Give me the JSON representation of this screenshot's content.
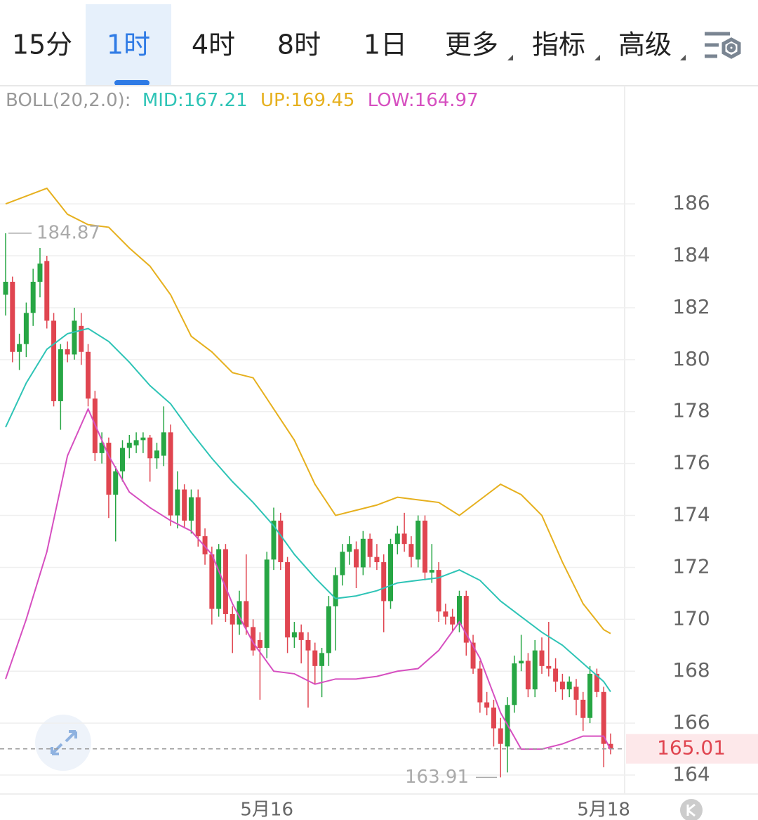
{
  "tabs": [
    "15分",
    "1时",
    "4时",
    "8时",
    "1日",
    "更多",
    "指标",
    "高级"
  ],
  "chart_data": {
    "type": "candlestick",
    "boll_label": "BOLL(20,2.0):",
    "ylim": [
      163.27,
      190.47
    ],
    "yticks": [
      164,
      166,
      168,
      170,
      172,
      174,
      176,
      178,
      180,
      182,
      184,
      186
    ],
    "grid": true,
    "up_color": "#27a644",
    "down_color": "#e04550",
    "high_label": 184.87,
    "low_label": 163.91,
    "last_price": 165.01,
    "categories": [
      null,
      null,
      null,
      null,
      null,
      null,
      null,
      null,
      null,
      null,
      null,
      null,
      null,
      null,
      null,
      null,
      null,
      null,
      null,
      null,
      null,
      null,
      null,
      null,
      null,
      null,
      null,
      null,
      null,
      null,
      null,
      null,
      null,
      null,
      null,
      null,
      null,
      null,
      "5月16",
      null,
      null,
      null,
      null,
      null,
      null,
      null,
      null,
      null,
      null,
      null,
      null,
      null,
      null,
      null,
      null,
      null,
      null,
      null,
      null,
      null,
      null,
      null,
      null,
      null,
      null,
      null,
      null,
      null,
      null,
      null,
      null,
      null,
      null,
      null,
      null,
      null,
      null,
      null,
      null,
      null,
      null,
      null,
      null,
      null,
      null,
      null,
      null,
      "5月18",
      null
    ],
    "ohlc": [
      [
        182.5,
        184.87,
        181.7,
        183
      ],
      [
        183,
        183.2,
        179.9,
        180.3
      ],
      [
        180.3,
        181,
        179.6,
        180.6
      ],
      [
        180.6,
        182.2,
        180.1,
        181.8
      ],
      [
        181.8,
        183.5,
        181.3,
        183
      ],
      [
        183,
        184.3,
        182.4,
        183.7
      ],
      [
        183.8,
        184,
        181.2,
        181.5
      ],
      [
        181.5,
        181.8,
        178.2,
        178.4
      ],
      [
        178.4,
        180.6,
        177.3,
        180.4
      ],
      [
        180.4,
        180.7,
        179.9,
        180.2
      ],
      [
        180.2,
        182,
        180,
        181.5
      ],
      [
        181.3,
        181.8,
        179.8,
        180.3
      ],
      [
        180.3,
        180.6,
        178.2,
        178.5
      ],
      [
        178.5,
        178.8,
        176.1,
        176.4
      ],
      [
        176.4,
        177.2,
        176,
        176.8
      ],
      [
        176.8,
        177,
        173.9,
        174.8
      ],
      [
        174.8,
        175.9,
        173,
        175.7
      ],
      [
        175.7,
        176.9,
        175.3,
        176.6
      ],
      [
        176.6,
        177.1,
        176.2,
        176.8
      ],
      [
        176.7,
        177.2,
        176.4,
        176.9
      ],
      [
        176.9,
        177.2,
        176.4,
        177
      ],
      [
        177,
        177.1,
        175.3,
        176.2
      ],
      [
        176.2,
        176.8,
        175.8,
        176.5
      ],
      [
        176.3,
        178.2,
        175.9,
        177.2
      ],
      [
        177.2,
        177.5,
        173.6,
        174
      ],
      [
        174,
        175.7,
        173.5,
        175
      ],
      [
        175,
        175.2,
        173.5,
        173.8
      ],
      [
        173.8,
        175,
        173.3,
        174.7
      ],
      [
        174.7,
        175,
        172.8,
        173.2
      ],
      [
        173.2,
        173.5,
        172.1,
        172.5
      ],
      [
        172.5,
        172.8,
        169.8,
        170.4
      ],
      [
        170.4,
        172.9,
        170.1,
        172.7
      ],
      [
        172.7,
        172.9,
        169.9,
        170.2
      ],
      [
        170.2,
        170.5,
        168.7,
        169.8
      ],
      [
        169.8,
        171.1,
        169.4,
        170.7
      ],
      [
        170.7,
        172.5,
        169.4,
        169.7
      ],
      [
        169.7,
        170,
        168.6,
        168.8
      ],
      [
        169.2,
        169.5,
        166.9,
        168.9
      ],
      [
        168.9,
        172.6,
        168.5,
        172.3
      ],
      [
        172.3,
        174.3,
        171.9,
        173.8
      ],
      [
        173.8,
        174.1,
        171.9,
        172.2
      ],
      [
        172.2,
        172.4,
        168.7,
        169.3
      ],
      [
        169.3,
        169.9,
        168.9,
        169.5
      ],
      [
        169.5,
        169.8,
        168.3,
        169.2
      ],
      [
        169.2,
        169.5,
        166.6,
        168.8
      ],
      [
        168.8,
        169.1,
        167.5,
        168.2
      ],
      [
        168.2,
        168.9,
        167,
        168.7
      ],
      [
        168.7,
        170.9,
        168.2,
        170.5
      ],
      [
        170.5,
        172,
        168.8,
        171.7
      ],
      [
        171.7,
        172.9,
        171.3,
        172.6
      ],
      [
        172.6,
        173.2,
        172.1,
        172.9
      ],
      [
        172.7,
        173,
        171.2,
        172
      ],
      [
        172,
        173.4,
        171.7,
        173.1
      ],
      [
        173.1,
        173.3,
        172,
        172.4
      ],
      [
        172.4,
        172.9,
        171.9,
        172.2
      ],
      [
        172.2,
        172.5,
        169.5,
        170.7
      ],
      [
        170.7,
        173.1,
        170.4,
        172.9
      ],
      [
        172.9,
        173.6,
        172.5,
        173.3
      ],
      [
        173.3,
        174.1,
        172.6,
        172.9
      ],
      [
        172.9,
        173.2,
        172,
        172.4
      ],
      [
        172.3,
        174,
        172,
        173.8
      ],
      [
        173.8,
        174,
        171.5,
        171.8
      ],
      [
        171.8,
        172.9,
        171.4,
        171.9
      ],
      [
        171.9,
        172.2,
        169.9,
        170.3
      ],
      [
        170.3,
        170.6,
        169.8,
        170.1
      ],
      [
        170.1,
        170.4,
        169.5,
        169.8
      ],
      [
        169.8,
        171.1,
        169.5,
        170.9
      ],
      [
        170.9,
        171.1,
        168.6,
        169.1
      ],
      [
        169.1,
        169.4,
        167.9,
        168.1
      ],
      [
        168.1,
        168.4,
        166.4,
        166.8
      ],
      [
        166.8,
        167.2,
        166.3,
        166.6
      ],
      [
        166.6,
        166.9,
        165.1,
        165.8
      ],
      [
        165.8,
        166.2,
        163.91,
        165.2
      ],
      [
        165.1,
        167,
        164.1,
        166.7
      ],
      [
        166.7,
        168.6,
        166.4,
        168.3
      ],
      [
        168.3,
        169.4,
        168,
        168.4
      ],
      [
        168.4,
        168.7,
        167,
        167.3
      ],
      [
        167.3,
        169.2,
        167,
        168.8
      ],
      [
        168.8,
        169.3,
        167.9,
        168.2
      ],
      [
        168.2,
        169.9,
        167.8,
        168.1
      ],
      [
        168.1,
        168.5,
        167.2,
        167.6
      ],
      [
        167.6,
        167.9,
        166.9,
        167.3
      ],
      [
        167.3,
        167.8,
        167,
        167.6
      ],
      [
        167.4,
        167.7,
        166.3,
        166.9
      ],
      [
        166.9,
        167.2,
        165.7,
        166.2
      ],
      [
        166.2,
        168.2,
        166,
        167.9
      ],
      [
        167.9,
        168.1,
        167,
        167.2
      ],
      [
        167.2,
        167.4,
        164.3,
        165.2
      ],
      [
        165.2,
        165.6,
        164.8,
        165.01
      ]
    ],
    "series": [
      {
        "name": "MID:",
        "color": "#2ec4b6",
        "x": [
          0,
          3,
          6,
          9,
          12,
          15,
          18,
          21,
          24,
          27,
          30,
          33,
          36,
          39,
          42,
          45,
          48,
          51,
          54,
          57,
          60,
          63,
          66,
          69,
          72,
          75,
          78,
          81,
          84,
          87,
          88
        ],
        "values": [
          177.4,
          179.1,
          180.4,
          181.0,
          181.2,
          180.7,
          179.9,
          179.0,
          178.3,
          177.2,
          176.2,
          175.3,
          174.5,
          173.6,
          172.5,
          171.6,
          170.8,
          170.9,
          171.1,
          171.4,
          171.5,
          171.6,
          171.9,
          171.5,
          170.7,
          170.1,
          169.5,
          169.0,
          168.3,
          167.6,
          167.21
        ]
      },
      {
        "name": "UP:",
        "color": "#e6b01e",
        "x": [
          0,
          3,
          6,
          9,
          12,
          15,
          18,
          21,
          24,
          27,
          30,
          33,
          36,
          39,
          42,
          45,
          48,
          51,
          54,
          57,
          60,
          63,
          66,
          69,
          72,
          75,
          78,
          81,
          84,
          87,
          88
        ],
        "values": [
          186.0,
          186.3,
          186.6,
          185.6,
          185.2,
          185.1,
          184.3,
          183.6,
          182.5,
          180.9,
          180.3,
          179.5,
          179.3,
          178.1,
          176.9,
          175.2,
          174.0,
          174.2,
          174.4,
          174.7,
          174.6,
          174.5,
          174.0,
          174.6,
          175.2,
          174.8,
          174.0,
          172.2,
          170.6,
          169.6,
          169.45
        ]
      },
      {
        "name": "LOW:",
        "color": "#d64fc0",
        "x": [
          0,
          3,
          6,
          9,
          12,
          15,
          18,
          21,
          24,
          27,
          30,
          33,
          36,
          39,
          42,
          45,
          48,
          51,
          54,
          57,
          60,
          63,
          66,
          69,
          72,
          75,
          78,
          81,
          84,
          87,
          88
        ],
        "values": [
          167.7,
          170.0,
          172.6,
          176.3,
          178.1,
          176.3,
          174.9,
          174.3,
          173.8,
          173.4,
          172.5,
          170.6,
          169.1,
          168.0,
          167.9,
          167.5,
          167.7,
          167.7,
          167.8,
          168.0,
          168.1,
          168.8,
          169.9,
          168.5,
          166.4,
          165.0,
          165.0,
          165.2,
          165.5,
          165.5,
          164.97
        ]
      }
    ]
  }
}
